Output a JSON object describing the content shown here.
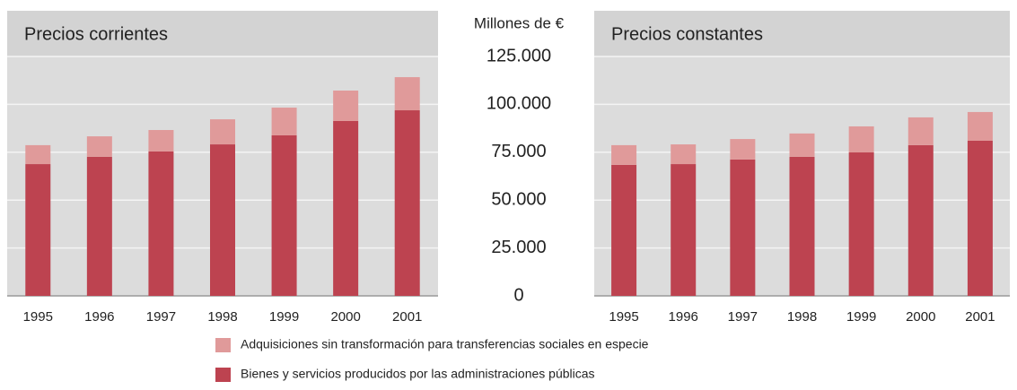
{
  "chart_data": [
    {
      "type": "stacked_bar",
      "title": "Precios corrientes",
      "y_label": "Millones de €",
      "categories": [
        "1995",
        "1996",
        "1997",
        "1998",
        "1999",
        "2000",
        "2001"
      ],
      "series": [
        {
          "name": "Bienes y servicios producidos por las administraciones públicas",
          "color": "#bd4350",
          "values": [
            68800,
            72600,
            75400,
            79100,
            83800,
            91300,
            96900
          ]
        },
        {
          "name": "Adquisiciones sin transformación para transferencias sociales en especie",
          "color": "#e09a9a",
          "values": [
            9900,
            10700,
            11200,
            13100,
            14500,
            15900,
            17300
          ]
        }
      ],
      "ylim": [
        0,
        125000
      ],
      "yticks": [
        0,
        {
          "value": 25000,
          "label": "25.000"
        },
        {
          "value": 50000,
          "label": "50.000"
        },
        {
          "value": 75000,
          "label": "75.000"
        },
        {
          "value": 100000,
          "label": "100.000"
        },
        {
          "value": 125000,
          "label": "125.000"
        }
      ],
      "grid": true
    },
    {
      "type": "stacked_bar",
      "title": "Precios constantes",
      "categories": [
        "1995",
        "1996",
        "1997",
        "1998",
        "1999",
        "2000",
        "2001"
      ],
      "series": [
        {
          "color": "#bd4350",
          "values": [
            68400,
            68800,
            71200,
            72600,
            74900,
            78700,
            81000
          ]
        },
        {
          "color": "#e09a9a",
          "values": [
            10300,
            10300,
            10700,
            12200,
            13600,
            14500,
            15000
          ]
        }
      ],
      "grid": true
    }
  ]
}
